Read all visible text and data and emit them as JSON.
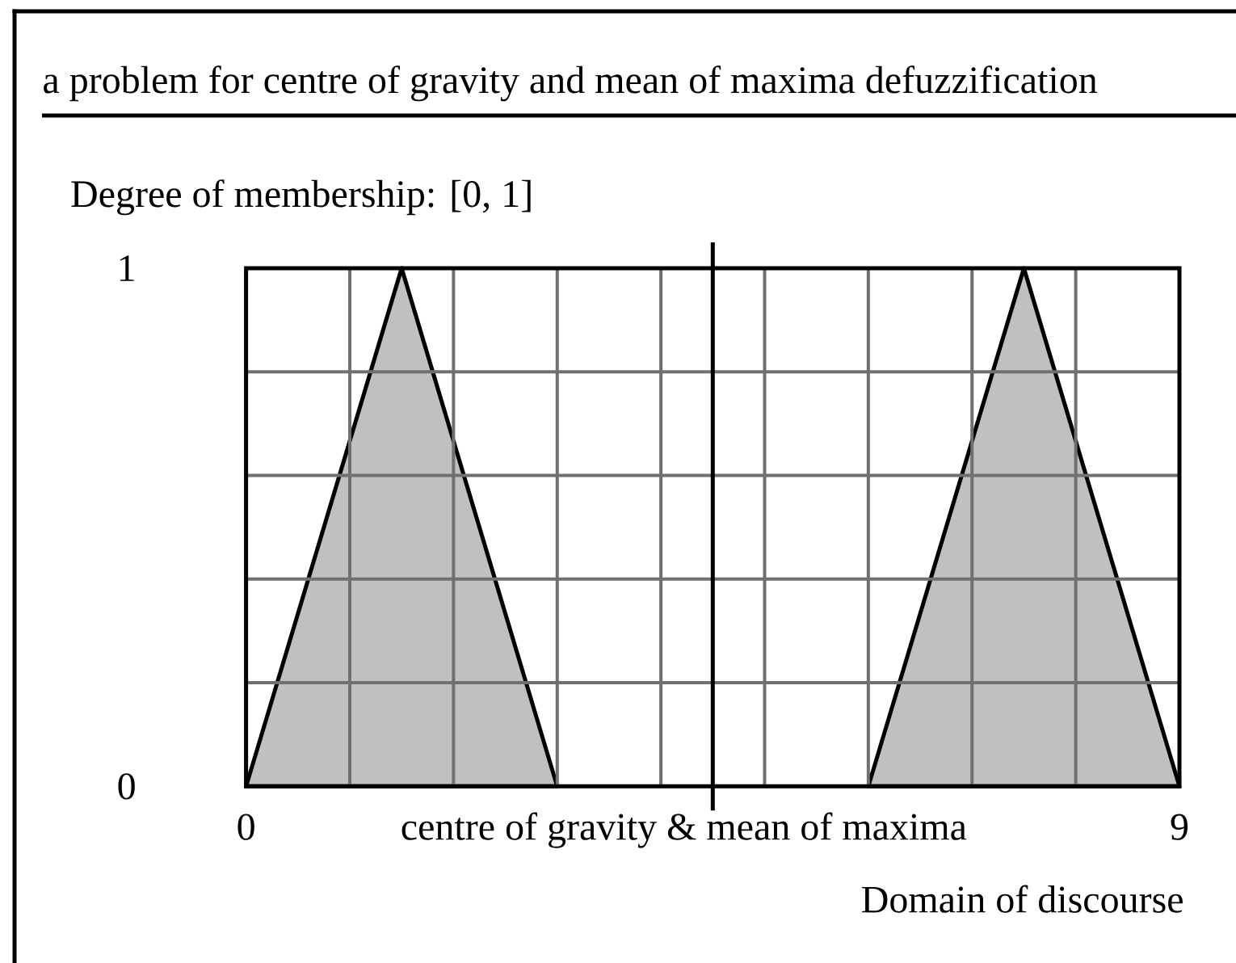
{
  "chart_data": {
    "type": "area",
    "title": "a problem for centre of gravity and mean of maxima defuzzification",
    "xlabel": "Domain of discourse",
    "ylabel": "Degree of membership: [0, 1]",
    "series": [
      {
        "x": [
          0,
          1.5,
          3
        ],
        "values": [
          0,
          1,
          0
        ],
        "color": "#c0c0c0"
      },
      {
        "x": [
          6,
          7.5,
          9
        ],
        "values": [
          0,
          1,
          0
        ],
        "color": "#c0c0c0"
      }
    ],
    "xlim": [
      0,
      9
    ],
    "ylim": [
      0,
      1
    ],
    "xticks": [
      0,
      {
        "value": 1,
        "label": null
      },
      {
        "value": 2,
        "label": null
      },
      {
        "value": 3,
        "label": null
      },
      {
        "value": 4,
        "label": null
      },
      {
        "value": 5,
        "label": null
      },
      {
        "value": 6,
        "label": null
      },
      {
        "value": 7,
        "label": null
      },
      {
        "value": 8,
        "label": null
      },
      9
    ],
    "yticks": [
      0,
      {
        "value": 0.2,
        "label": null
      },
      {
        "value": 0.4,
        "label": null
      },
      {
        "value": 0.6,
        "label": null
      },
      {
        "value": 0.8,
        "label": null
      },
      1
    ],
    "grid": true,
    "ref_lines": [
      {
        "axis": "x",
        "value": 4.5,
        "label": "centre of gravity & mean of maxima",
        "color": "#000000"
      }
    ]
  }
}
